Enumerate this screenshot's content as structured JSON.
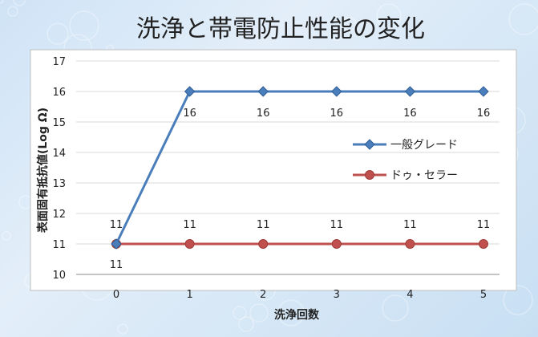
{
  "chart_data": {
    "type": "line",
    "title": "洗浄と帯電防止性能の変化",
    "xlabel": "洗浄回数",
    "ylabel": "表面固有抵抗値(Log Ω)",
    "categories": [
      "0",
      "1",
      "2",
      "3",
      "4",
      "5"
    ],
    "ylim": [
      10,
      17
    ],
    "yticks": [
      10,
      11,
      12,
      13,
      14,
      15,
      16,
      17
    ],
    "grid": true,
    "legend_position": "right",
    "series": [
      {
        "name": "一般グレード",
        "values": [
          11,
          16,
          16,
          16,
          16,
          16
        ],
        "color": "#4a7ebb",
        "marker": "diamond",
        "labels": [
          "11",
          "16",
          "16",
          "16",
          "16",
          "16"
        ]
      },
      {
        "name": "ドゥ・セラー",
        "values": [
          11,
          11,
          11,
          11,
          11,
          11
        ],
        "color": "#c0504d",
        "marker": "circle",
        "labels": [
          "11",
          "11",
          "11",
          "11",
          "11",
          "11"
        ]
      }
    ]
  }
}
